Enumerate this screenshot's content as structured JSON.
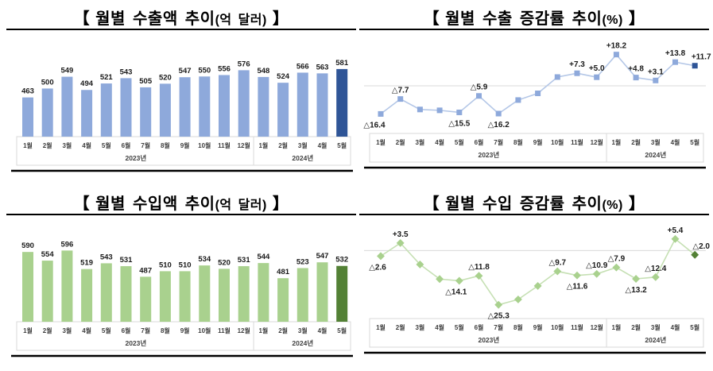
{
  "chart_data": [
    {
      "id": "export-amount",
      "type": "bar",
      "title": {
        "open": "【",
        "main": "월별 수출액 추이",
        "unit": "(억 달러)",
        "close": "】"
      },
      "categories": [
        "1월",
        "2월",
        "3월",
        "4월",
        "5월",
        "6월",
        "7월",
        "8월",
        "9월",
        "10월",
        "11월",
        "12월",
        "1월",
        "2월",
        "3월",
        "4월",
        "5월"
      ],
      "year_groups": [
        {
          "label": "2023년",
          "count": 12
        },
        {
          "label": "2024년",
          "count": 5
        }
      ],
      "values": [
        463,
        500,
        549,
        494,
        521,
        543,
        505,
        520,
        547,
        550,
        556,
        576,
        548,
        524,
        566,
        563,
        581
      ],
      "bar_labels": [
        "463",
        "500",
        "549",
        "494",
        "521",
        "543",
        "505",
        "520",
        "547",
        "550",
        "556",
        "576",
        "548",
        "524",
        "566",
        "563",
        "581"
      ],
      "ylim": [
        300,
        650
      ],
      "grid": false,
      "legend": "none",
      "highlight_last": true,
      "colors": {
        "series": "#8EA9DB",
        "last": "#2F5597"
      }
    },
    {
      "id": "export-growth",
      "type": "line",
      "marker": "square",
      "title": {
        "open": "【",
        "main": "월별 수출 증감률 추이",
        "unit": "(%)",
        "close": "】"
      },
      "categories": [
        "1월",
        "2월",
        "3월",
        "4월",
        "5월",
        "6월",
        "7월",
        "8월",
        "9월",
        "10월",
        "11월",
        "12월",
        "1월",
        "2월",
        "3월",
        "4월",
        "5월"
      ],
      "year_groups": [
        {
          "label": "2023년",
          "count": 12
        },
        {
          "label": "2024년",
          "count": 5
        }
      ],
      "values": [
        -16.4,
        -7.7,
        -13.8,
        -14.3,
        -15.5,
        -5.9,
        -16.2,
        -8.3,
        -4.4,
        5.1,
        7.3,
        5.0,
        18.2,
        4.8,
        3.1,
        13.8,
        11.7
      ],
      "point_labels": [
        "△16.4",
        "△7.7",
        "",
        "",
        "△15.5",
        "△5.9",
        "△16.2",
        "",
        "",
        "",
        "+7.3",
        "+5.0",
        "+18.2",
        "+4.8",
        "+3.1",
        "+13.8",
        "+11.7"
      ],
      "label_side": [
        "below",
        "above",
        "",
        "",
        "below",
        "above",
        "below",
        "",
        "",
        "",
        "above",
        "above",
        "above",
        "above",
        "above",
        "above",
        "above"
      ],
      "label_dx": [
        -8,
        0,
        0,
        0,
        0,
        0,
        0,
        0,
        0,
        0,
        0,
        0,
        0,
        0,
        0,
        0,
        8
      ],
      "ylim": [
        -25,
        25
      ],
      "zero_line": true,
      "grid": false,
      "legend": "none",
      "highlight_last": true,
      "colors": {
        "line": "#B4C7E7",
        "marker": "#8EA9DB",
        "last": "#2F5597"
      }
    },
    {
      "id": "import-amount",
      "type": "bar",
      "title": {
        "open": "【",
        "main": "월별 수입액 추이",
        "unit": "(억 달러)",
        "close": "】"
      },
      "categories": [
        "1월",
        "2월",
        "3월",
        "4월",
        "5월",
        "6월",
        "7월",
        "8월",
        "9월",
        "10월",
        "11월",
        "12월",
        "1월",
        "2월",
        "3월",
        "4월",
        "5월"
      ],
      "year_groups": [
        {
          "label": "2023년",
          "count": 12
        },
        {
          "label": "2024년",
          "count": 5
        }
      ],
      "values": [
        590,
        554,
        596,
        519,
        543,
        531,
        487,
        510,
        510,
        534,
        520,
        531,
        544,
        481,
        523,
        547,
        532
      ],
      "bar_labels": [
        "590",
        "554",
        "596",
        "519",
        "543",
        "531",
        "487",
        "510",
        "510",
        "534",
        "520",
        "531",
        "544",
        "481",
        "523",
        "547",
        "532"
      ],
      "ylim": [
        300,
        650
      ],
      "grid": false,
      "legend": "none",
      "highlight_last": true,
      "colors": {
        "series": "#A9D18E",
        "last": "#538135"
      }
    },
    {
      "id": "import-growth",
      "type": "line",
      "marker": "diamond",
      "title": {
        "open": "【",
        "main": "월별 수입 증감률 추이",
        "unit": "(%)",
        "close": "】"
      },
      "categories": [
        "1월",
        "2월",
        "3월",
        "4월",
        "5월",
        "6월",
        "7월",
        "8월",
        "9월",
        "10월",
        "11월",
        "12월",
        "1월",
        "2월",
        "3월",
        "4월",
        "5월"
      ],
      "year_groups": [
        {
          "label": "2023년",
          "count": 12
        },
        {
          "label": "2024년",
          "count": 5
        }
      ],
      "values": [
        -2.6,
        3.5,
        -6.5,
        -13.3,
        -14.1,
        -11.8,
        -25.3,
        -22.8,
        -16.5,
        -9.7,
        -11.6,
        -10.9,
        -7.9,
        -13.2,
        -12.4,
        5.4,
        -2.0
      ],
      "point_labels": [
        "△2.6",
        "+3.5",
        "",
        "",
        "△14.1",
        "△11.8",
        "△25.3",
        "",
        "",
        "△9.7",
        "△11.6",
        "△10.9",
        "△7.9",
        "△13.2",
        "△12.4",
        "+5.4",
        "△2.0"
      ],
      "label_side": [
        "below",
        "above",
        "",
        "",
        "below",
        "above",
        "below",
        "",
        "",
        "above",
        "below",
        "above",
        "above",
        "below",
        "above",
        "above",
        "above"
      ],
      "label_dx": [
        -4,
        0,
        0,
        0,
        -4,
        0,
        0,
        0,
        0,
        0,
        0,
        0,
        0,
        0,
        0,
        0,
        8
      ],
      "ylim": [
        -29.5,
        10.5
      ],
      "zero_line": true,
      "grid": false,
      "legend": "none",
      "highlight_last": true,
      "colors": {
        "line": "#C6E0B4",
        "marker": "#A9D18E",
        "last": "#538135"
      }
    }
  ]
}
